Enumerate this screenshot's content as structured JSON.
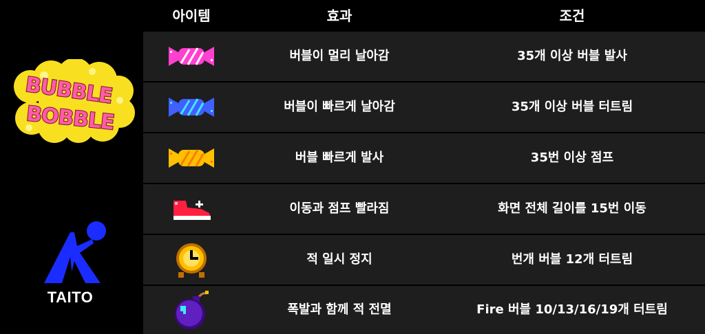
{
  "header": {
    "item": "아이템",
    "effect": "효과",
    "condition": "조건"
  },
  "logos": {
    "bubble_bobble": {
      "line1": "BUBBLE",
      "line2": "BOBBLE"
    },
    "taito": "TAITO"
  },
  "items": [
    {
      "icon": "pink-candy-icon",
      "color": "#ff40d0",
      "effect": "버블이 멀리 날아감",
      "condition": "35개 이상 버블 발사"
    },
    {
      "icon": "blue-candy-icon",
      "color": "#4060ff",
      "effect": "버블이 빠르게 날아감",
      "condition": "35개 이상 버블 터트림"
    },
    {
      "icon": "yellow-candy-icon",
      "color": "#ffc000",
      "effect": "버블 빠르게 발사",
      "condition": "35번 이상 점프"
    },
    {
      "icon": "red-shoe-icon",
      "color": "#ff2040",
      "effect": "이동과 점프 빨라짐",
      "condition": "화면 전체 길이를 15번 이동"
    },
    {
      "icon": "clock-icon",
      "color": "#ffc000",
      "effect": "적 일시 정지",
      "condition": "번개 버블 12개 터트림"
    },
    {
      "icon": "bomb-icon",
      "color": "#6020c0",
      "effect": "폭발과 함께 적 전멸",
      "condition": "Fire 버블 10/13/16/19개 터트림"
    }
  ]
}
